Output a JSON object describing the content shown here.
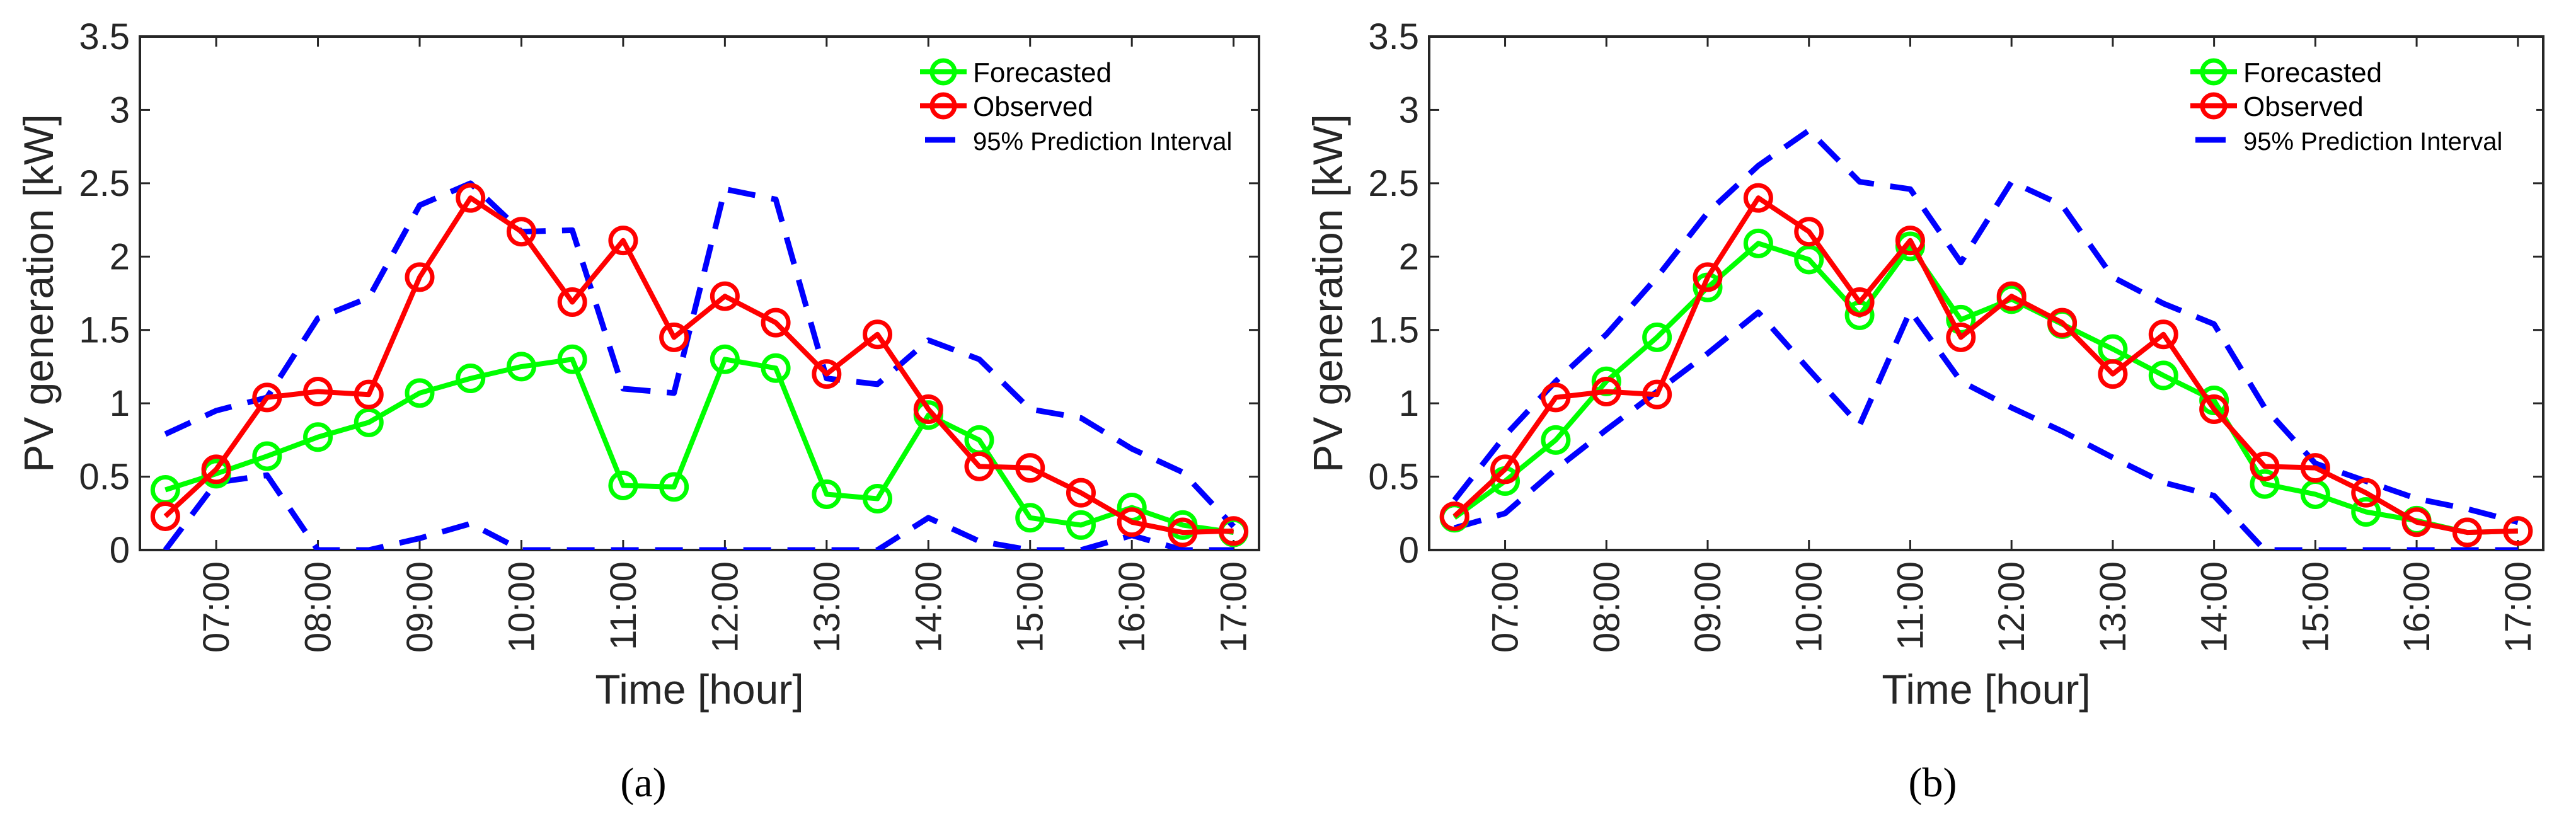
{
  "chart_data": [
    {
      "type": "line",
      "panel": "a",
      "caption": "(a)",
      "caption_letter": "a",
      "xlabel": "Time [hour]",
      "ylabel": "PV generation [kW]",
      "ylim": [
        0,
        3.5
      ],
      "yticks": [
        "0",
        "0.5",
        "1",
        "1.5",
        "2",
        "2.5",
        "3",
        "3.5"
      ],
      "xlim": [
        6.25,
        17.25
      ],
      "xticks": [
        {
          "label": "07:00",
          "x": 7
        },
        {
          "label": "08:00",
          "x": 8
        },
        {
          "label": "09:00",
          "x": 9
        },
        {
          "label": "10:00",
          "x": 10
        },
        {
          "label": "11:00",
          "x": 11
        },
        {
          "label": "12:00",
          "x": 12
        },
        {
          "label": "13:00",
          "x": 13
        },
        {
          "label": "14:00",
          "x": 14
        },
        {
          "label": "15:00",
          "x": 15
        },
        {
          "label": "16:00",
          "x": 16
        },
        {
          "label": "17:00",
          "x": 17
        }
      ],
      "legend": [
        "Forecasted",
        "Observed",
        "95% Prediction Interval"
      ],
      "x": [
        6.5,
        7,
        7.5,
        8,
        8.5,
        9,
        9.5,
        10,
        10.5,
        11,
        11.5,
        12,
        12.5,
        13,
        13.5,
        14,
        14.5,
        15,
        15.5,
        16,
        16.5,
        17
      ],
      "forecasted": [
        0.41,
        0.52,
        0.64,
        0.77,
        0.87,
        1.07,
        1.17,
        1.25,
        1.3,
        0.44,
        0.43,
        1.3,
        1.24,
        0.38,
        0.35,
        0.92,
        0.75,
        0.22,
        0.17,
        0.29,
        0.17,
        0.12
      ],
      "observed": [
        0.23,
        0.55,
        1.04,
        1.08,
        1.06,
        1.86,
        2.4,
        2.17,
        1.69,
        2.11,
        1.45,
        1.73,
        1.55,
        1.2,
        1.47,
        0.96,
        0.57,
        0.56,
        0.39,
        0.19,
        0.12,
        0.13
      ],
      "pi_upper": [
        0.79,
        0.95,
        1.04,
        1.58,
        1.72,
        2.35,
        2.5,
        2.17,
        2.18,
        1.1,
        1.07,
        2.46,
        2.39,
        1.17,
        1.13,
        1.43,
        1.3,
        0.96,
        0.9,
        0.69,
        0.53,
        0.16
      ],
      "pi_lower": [
        0.0,
        0.46,
        0.51,
        0.0,
        0.0,
        0.08,
        0.18,
        0.0,
        0.0,
        0.0,
        0.0,
        0.0,
        0.0,
        0.0,
        0.0,
        0.22,
        0.06,
        0.0,
        0.0,
        0.1,
        0.0,
        0.0
      ]
    },
    {
      "type": "line",
      "panel": "b",
      "caption": "(b)",
      "caption_letter": "b",
      "xlabel": "Time [hour]",
      "ylabel": "PV generation [kW]",
      "ylim": [
        0,
        3.5
      ],
      "yticks": [
        "0",
        "0.5",
        "1",
        "1.5",
        "2",
        "2.5",
        "3",
        "3.5"
      ],
      "xlim": [
        6.25,
        17.25
      ],
      "xticks": [
        {
          "label": "07:00",
          "x": 7
        },
        {
          "label": "08:00",
          "x": 8
        },
        {
          "label": "09:00",
          "x": 9
        },
        {
          "label": "10:00",
          "x": 10
        },
        {
          "label": "11:00",
          "x": 11
        },
        {
          "label": "12:00",
          "x": 12
        },
        {
          "label": "13:00",
          "x": 13
        },
        {
          "label": "14:00",
          "x": 14
        },
        {
          "label": "15:00",
          "x": 15
        },
        {
          "label": "16:00",
          "x": 16
        },
        {
          "label": "17:00",
          "x": 17
        }
      ],
      "legend": [
        "Forecasted",
        "Observed",
        "95% Prediction Interval"
      ],
      "x": [
        6.5,
        7,
        7.5,
        8,
        8.5,
        9,
        9.5,
        10,
        10.5,
        11,
        11.5,
        12,
        12.5,
        13,
        13.5,
        14,
        14.5,
        15,
        15.5,
        16,
        16.5,
        17
      ],
      "forecasted": [
        0.22,
        0.47,
        0.75,
        1.15,
        1.45,
        1.79,
        2.09,
        1.98,
        1.6,
        2.07,
        1.57,
        1.71,
        1.54,
        1.37,
        1.19,
        1.02,
        0.45,
        0.38,
        0.26,
        0.2,
        0.12,
        0.13
      ],
      "observed": [
        0.23,
        0.55,
        1.04,
        1.08,
        1.06,
        1.86,
        2.4,
        2.17,
        1.69,
        2.11,
        1.45,
        1.73,
        1.55,
        1.2,
        1.47,
        0.96,
        0.57,
        0.56,
        0.39,
        0.19,
        0.12,
        0.13
      ],
      "pi_upper": [
        0.34,
        0.78,
        1.15,
        1.47,
        1.86,
        2.3,
        2.62,
        2.86,
        2.51,
        2.46,
        1.96,
        2.51,
        2.35,
        1.86,
        1.68,
        1.54,
        0.97,
        0.59,
        0.47,
        0.35,
        0.28,
        0.19
      ],
      "pi_lower": [
        0.15,
        0.25,
        0.55,
        0.82,
        1.08,
        1.34,
        1.62,
        1.23,
        0.85,
        1.63,
        1.15,
        0.97,
        0.81,
        0.63,
        0.46,
        0.37,
        0.0,
        0.0,
        0.0,
        0.0,
        0.0,
        0.0
      ]
    }
  ],
  "colors": {
    "forecasted": "#00ff00",
    "observed": "#ff0000",
    "interval": "#0000ff",
    "axis": "#262626"
  }
}
